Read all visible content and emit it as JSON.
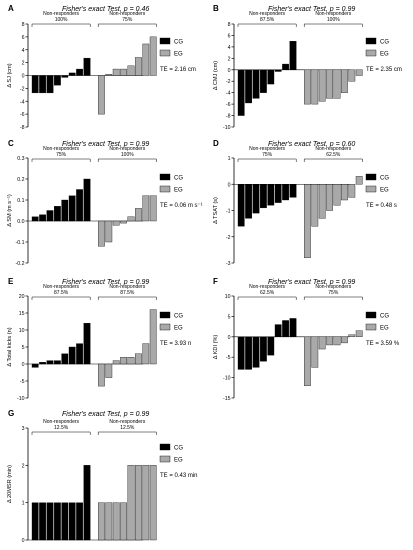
{
  "chart_data": [
    {
      "id": "A",
      "type": "bar",
      "panel_label": "A",
      "title_prefix": "Fisher's exact Test, ",
      "title_p": "p",
      "title_value": " = 0.46",
      "ylabel": "Δ SJ (cm)",
      "ylim": [
        -8,
        8
      ],
      "yticks": [
        "-8",
        "-6",
        "-4",
        "-2",
        "0",
        "2",
        "4",
        "6",
        "8"
      ],
      "te_label": "TE = 2.16 cm",
      "legend": [
        "CG",
        "EG"
      ],
      "brackets": [
        {
          "label1": "Non-responders",
          "label2": "100%"
        },
        {
          "label1": "Non-responders",
          "label2": "75%"
        }
      ],
      "series": [
        {
          "name": "CG",
          "values": [
            -2.7,
            -2.7,
            -2.7,
            -1.5,
            -0.3,
            0.4,
            1.0,
            2.7
          ]
        },
        {
          "name": "EG",
          "values": [
            -6.0,
            0.2,
            1.0,
            1.0,
            1.5,
            2.8,
            4.9,
            6.0
          ]
        }
      ]
    },
    {
      "id": "B",
      "type": "bar",
      "panel_label": "B",
      "title_prefix": "Fisher's exact Test, ",
      "title_p": "p",
      "title_value": " = 0.99",
      "ylabel": "Δ CMJ (cm)",
      "ylim": [
        -10,
        8
      ],
      "yticks": [
        "-10",
        "-8",
        "-6",
        "-4",
        "-2",
        "0",
        "2",
        "4",
        "6",
        "8"
      ],
      "te_label": "TE = 2.35 cm",
      "legend": [
        "CG",
        "EG"
      ],
      "brackets": [
        {
          "label1": "Non-responders",
          "label2": "87.5%"
        },
        {
          "label1": "Non-responders",
          "label2": "100%"
        }
      ],
      "series": [
        {
          "name": "CG",
          "values": [
            -8.0,
            -5.8,
            -5.0,
            -4.0,
            -2.5,
            -0.3,
            1.0,
            5.0
          ]
        },
        {
          "name": "EG",
          "values": [
            -6.0,
            -6.0,
            -5.5,
            -5.0,
            -5.0,
            -4.0,
            -2.0,
            -1.0
          ]
        }
      ]
    },
    {
      "id": "C",
      "type": "bar",
      "panel_label": "C",
      "title_prefix": "Fisher's exact Test, ",
      "title_p": "p",
      "title_value": " = 0.99",
      "ylabel": "Δ SM (m s⁻¹)",
      "ylim": [
        -0.2,
        0.3
      ],
      "yticks": [
        "-0.2",
        "-0.1",
        "0.0",
        "0.1",
        "0.2",
        "0.3"
      ],
      "te_label": "TE = 0.06 m s⁻¹",
      "legend": [
        "CG",
        "EG"
      ],
      "brackets": [
        {
          "label1": "Non-responders",
          "label2": "75%"
        },
        {
          "label1": "Non-responders",
          "label2": "100%"
        }
      ],
      "series": [
        {
          "name": "CG",
          "values": [
            0.02,
            0.03,
            0.05,
            0.07,
            0.1,
            0.12,
            0.15,
            0.2
          ]
        },
        {
          "name": "EG",
          "values": [
            -0.12,
            -0.1,
            -0.02,
            -0.01,
            0.02,
            0.06,
            0.12,
            0.12
          ]
        }
      ]
    },
    {
      "id": "D",
      "type": "bar",
      "panel_label": "D",
      "title_prefix": "Fisher's exact Test, ",
      "title_p": "p",
      "title_value": " = 0.60",
      "ylabel": "Δ TSAT (s)",
      "ylim": [
        -3,
        1
      ],
      "yticks": [
        "-3",
        "-2",
        "-1",
        "0",
        "1"
      ],
      "te_label": "TE = 0.48 s",
      "legend": [
        "CG",
        "EG"
      ],
      "brackets": [
        {
          "label1": "Non-responders",
          "label2": "75%"
        },
        {
          "label1": "Non-responders",
          "label2": "62.5%"
        }
      ],
      "series": [
        {
          "name": "CG",
          "values": [
            -1.6,
            -1.3,
            -1.1,
            -0.9,
            -0.8,
            -0.7,
            -0.6,
            -0.5
          ]
        },
        {
          "name": "EG",
          "values": [
            -2.8,
            -1.6,
            -1.3,
            -1.0,
            -0.8,
            -0.6,
            -0.5,
            0.3
          ]
        }
      ]
    },
    {
      "id": "E",
      "type": "bar",
      "panel_label": "E",
      "title_prefix": "Fisher's exact Test, ",
      "title_p": "p",
      "title_value": " = 0.99",
      "ylabel": "Δ Total kicks (n)",
      "ylim": [
        -10,
        20
      ],
      "yticks": [
        "-10",
        "-5",
        "0",
        "5",
        "10",
        "15",
        "20"
      ],
      "te_label": "TE = 3.93 n",
      "legend": [
        "CG",
        "EG"
      ],
      "brackets": [
        {
          "label1": "Non-responders",
          "label2": "87.5%"
        },
        {
          "label1": "Non-responders",
          "label2": "87.5%"
        }
      ],
      "series": [
        {
          "name": "CG",
          "values": [
            -1.0,
            0.5,
            1.0,
            1.0,
            3.0,
            5.0,
            6.0,
            12.0
          ]
        },
        {
          "name": "EG",
          "values": [
            -6.5,
            -4.0,
            1.0,
            2.0,
            2.0,
            3.0,
            6.0,
            16.0
          ]
        }
      ]
    },
    {
      "id": "F",
      "type": "bar",
      "panel_label": "F",
      "title_prefix": "Fisher's exact Test, ",
      "title_p": "p",
      "title_value": " = 0.99",
      "ylabel": "Δ KDI (%)",
      "ylim": [
        -15,
        10
      ],
      "yticks": [
        "-15",
        "-10",
        "-5",
        "0",
        "5",
        "10"
      ],
      "te_label": "TE = 3.59 %",
      "legend": [
        "CG",
        "EG"
      ],
      "brackets": [
        {
          "label1": "Non-responders",
          "label2": "62.5%"
        },
        {
          "label1": "Non-responders",
          "label2": "75%"
        }
      ],
      "series": [
        {
          "name": "CG",
          "values": [
            -8.0,
            -8.0,
            -7.5,
            -6.0,
            -4.5,
            3.0,
            4.0,
            4.5
          ]
        },
        {
          "name": "EG",
          "values": [
            -12.0,
            -7.5,
            -3.0,
            -2.0,
            -2.0,
            -1.5,
            0.5,
            1.5
          ]
        }
      ]
    },
    {
      "id": "G",
      "type": "bar",
      "panel_label": "G",
      "title_prefix": "Fisher's exact Test, ",
      "title_p": "p",
      "title_value": " = 0.99",
      "ylabel": "Δ 20MSR (min)",
      "ylim": [
        0,
        3
      ],
      "yticks": [
        "0",
        "1",
        "2",
        "3"
      ],
      "te_label": "TE = 0.43 min",
      "legend": [
        "CG",
        "EG"
      ],
      "brackets": [
        {
          "label1": "Non-responders",
          "label2": "12.5%"
        },
        {
          "label1": "Non-responders",
          "label2": "12.5%"
        }
      ],
      "series": [
        {
          "name": "CG",
          "values": [
            1,
            1,
            1,
            1,
            1,
            1,
            1,
            2
          ]
        },
        {
          "name": "EG",
          "values": [
            1,
            1,
            1,
            1,
            2,
            2,
            2,
            2
          ]
        }
      ]
    }
  ]
}
